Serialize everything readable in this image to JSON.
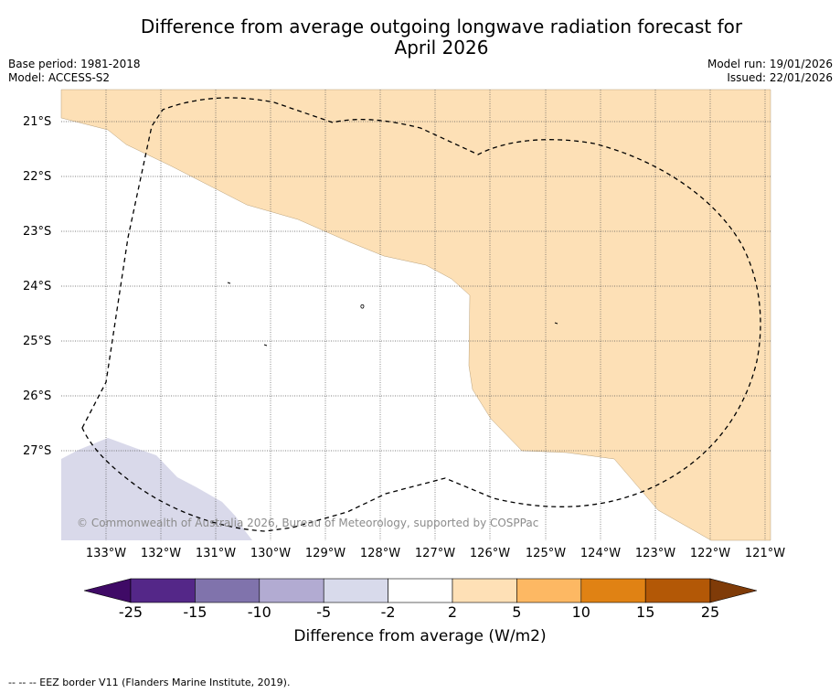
{
  "title": {
    "line1": "Difference from average outgoing longwave radiation forecast for",
    "line2": "April 2026"
  },
  "meta": {
    "base_period": "Base period: 1981-2018",
    "model": "Model: ACCESS-S2",
    "model_run": "Model run: 19/01/2026",
    "issued": "Issued: 22/01/2026"
  },
  "map": {
    "lat_labels": [
      "21°S",
      "22°S",
      "23°S",
      "24°S",
      "25°S",
      "26°S",
      "27°S"
    ],
    "lon_labels": [
      "133°W",
      "132°W",
      "131°W",
      "130°W",
      "129°W",
      "128°W",
      "127°W",
      "126°W",
      "125°W",
      "124°W",
      "123°W",
      "122°W",
      "121°W"
    ],
    "copyright": "© Commonwealth of Australia 2026, Bureau of Meteorology, supported by COSPPac",
    "colors": {
      "positive_2_5": "#fde0b6",
      "negative_5_2": "#d9d9ea",
      "eez_line": "#000000"
    }
  },
  "colorbar": {
    "ticks": [
      "-25",
      "-15",
      "-10",
      "-5",
      "-2",
      "2",
      "5",
      "10",
      "15",
      "25"
    ],
    "colors": [
      "#3f0a66",
      "#542788",
      "#8073ac",
      "#b2abd2",
      "#d8daeb",
      "#ffffff",
      "#fee0b6",
      "#fdb863",
      "#e08214",
      "#b35806",
      "#7f3b08"
    ],
    "label": "Difference from average (W/m2)"
  },
  "footnote": "--  --  -- EEZ border V11 (Flanders Marine Institute, 2019)."
}
